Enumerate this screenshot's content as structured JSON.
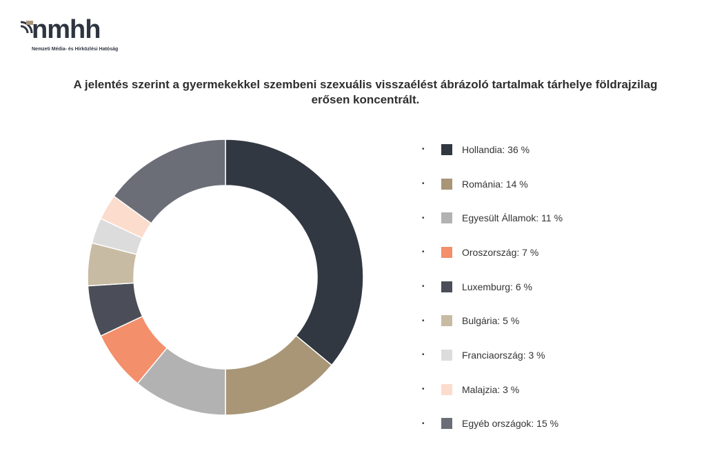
{
  "logo": {
    "text": "nmhh",
    "subtitle": "Nemzeti Média- és Hírközlési Hatóság"
  },
  "chart_data": {
    "type": "pie",
    "donut": true,
    "title": "A jelentés szerint a gyermekekkel szembeni szexuális visszaélést ábrázoló tartalmak tárhelye földrajzilag erősen koncentrált.",
    "legend_position": "right",
    "slices": [
      {
        "name": "Hollandia",
        "value": 36,
        "label": "Hollandia: 36 %",
        "color": "#323842"
      },
      {
        "name": "Románia",
        "value": 14,
        "label": "Románia: 14 %",
        "color": "#a89677"
      },
      {
        "name": "Egyesült Államok",
        "value": 11,
        "label": "Egyesült Államok: 11 %",
        "color": "#b3b2b3"
      },
      {
        "name": "Oroszország",
        "value": 7,
        "label": "Oroszország: 7 %",
        "color": "#f38f6b"
      },
      {
        "name": "Luxemburg",
        "value": 6,
        "label": "Luxemburg: 6 %",
        "color": "#4b4e58"
      },
      {
        "name": "Bulgária",
        "value": 5,
        "label": "Bulgária: 5 %",
        "color": "#c8bba3"
      },
      {
        "name": "Franciaország",
        "value": 3,
        "label": "Franciaország: 3 %",
        "color": "#dcdcdc"
      },
      {
        "name": "Malajzia",
        "value": 3,
        "label": "Malajzia: 3 %",
        "color": "#fcdccd"
      },
      {
        "name": "Egyéb országok",
        "value": 15,
        "label": "Egyéb országok: 15 %",
        "color": "#6c6e77"
      }
    ]
  }
}
